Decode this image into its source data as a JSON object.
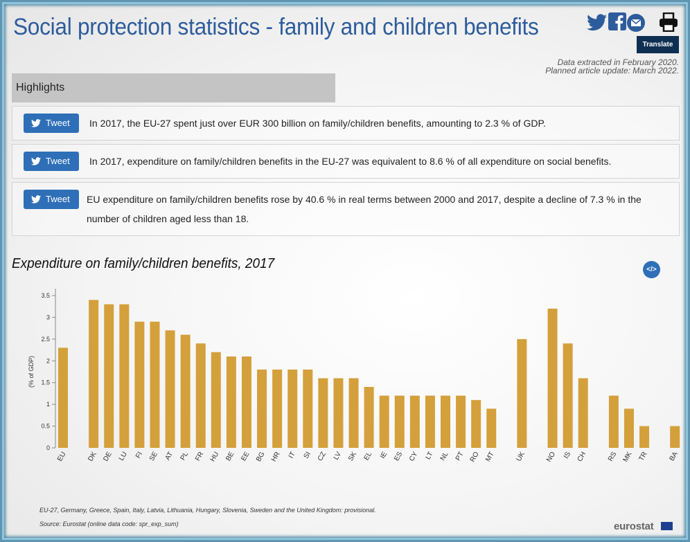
{
  "header": {
    "title": "Social protection statistics - family and children benefits",
    "translate_label": "Translate",
    "share_icons": [
      "twitter-icon",
      "facebook-icon",
      "email-icon",
      "print-icon"
    ]
  },
  "meta": {
    "extracted": "Data extracted in February 2020.",
    "update": "Planned article update: March 2022."
  },
  "highlights": {
    "heading": "Highlights",
    "tweet_label": "Tweet",
    "items": [
      {
        "text": "In 2017, the EU-27 spent just over EUR 300 billion on family/children benefits, amounting to 2.3 % of GDP."
      },
      {
        "text": "In 2017, expenditure on family/children benefits in the EU-27 was equivalent to 8.6 % of all expenditure on social benefits."
      },
      {
        "text": "EU expenditure on family/children benefits rose by 40.6 % in real terms between 2000 and 2017, despite a decline of 7.3 % in the number of children aged less than 18."
      }
    ]
  },
  "embed_label": "</>",
  "colors": {
    "bar": "#d4a03c",
    "title": "#2d5c9c",
    "tweet": "#2e6fb8"
  },
  "chart_data": {
    "type": "bar",
    "title": "Expenditure on family/children benefits, 2017",
    "ylabel": "(% of GDP)",
    "xlabel": "",
    "ylim": [
      0,
      3.5
    ],
    "yticks": [
      "0",
      "0.5",
      "1",
      "1.5",
      "2",
      "2.5",
      "3",
      "3.5"
    ],
    "grid": false,
    "categories": [
      "EU",
      "",
      "DK",
      "DE",
      "LU",
      "FI",
      "SE",
      "AT",
      "PL",
      "FR",
      "HU",
      "BE",
      "EE",
      "BG",
      "HR",
      "IT",
      "SI",
      "CZ",
      "LV",
      "SK",
      "EL",
      "IE",
      "ES",
      "CY",
      "LT",
      "NL",
      "PT",
      "RO",
      "MT",
      "",
      "UK",
      "",
      "NO",
      "IS",
      "CH",
      "",
      "RS",
      "MK",
      "TR",
      "",
      "BA"
    ],
    "values": [
      2.3,
      null,
      3.4,
      3.3,
      3.3,
      2.9,
      2.9,
      2.7,
      2.6,
      2.4,
      2.2,
      2.1,
      2.1,
      1.8,
      1.8,
      1.8,
      1.8,
      1.6,
      1.6,
      1.6,
      1.4,
      1.2,
      1.2,
      1.2,
      1.2,
      1.2,
      1.2,
      1.1,
      0.9,
      null,
      2.5,
      null,
      3.2,
      2.4,
      1.6,
      null,
      1.2,
      0.9,
      0.5,
      null,
      0.5
    ]
  },
  "footnotes": {
    "note": "EU-27, Germany, Greece, Spain, Italy, Latvia, Lithuania, Hungary, Slovenia, Sweden and the United Kingdom: provisional.",
    "source": "Source: Eurostat (online data code: spr_exp_sum)"
  },
  "logo": "eurostat"
}
